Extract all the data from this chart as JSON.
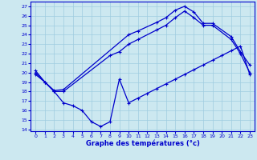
{
  "xlabel": "Graphe des températures (°c)",
  "background_color": "#cce8f0",
  "grid_color": "#9fcce0",
  "line_color": "#0000cc",
  "line1_x": [
    0,
    1,
    2,
    3,
    10,
    11,
    13,
    14,
    15,
    16,
    17,
    18,
    19,
    21,
    22,
    23
  ],
  "line1_y": [
    20.2,
    19.0,
    18.1,
    18.2,
    24.0,
    24.4,
    25.3,
    25.8,
    26.6,
    27.0,
    26.4,
    25.2,
    25.2,
    23.8,
    22.2,
    20.8
  ],
  "line2_x": [
    0,
    1,
    2,
    3,
    8,
    9,
    10,
    11,
    13,
    14,
    15,
    16,
    17,
    18,
    19,
    21,
    22,
    23
  ],
  "line2_y": [
    20.0,
    19.0,
    18.0,
    18.0,
    21.8,
    22.2,
    23.0,
    23.5,
    24.5,
    25.0,
    25.8,
    26.5,
    25.8,
    25.0,
    25.0,
    23.5,
    22.0,
    20.0
  ],
  "line3_x": [
    0,
    1,
    2,
    3,
    4,
    5,
    6,
    7,
    8,
    9,
    10,
    11,
    12,
    13,
    14,
    15,
    16,
    17,
    18,
    19,
    20,
    21,
    22,
    23
  ],
  "line3_y": [
    19.8,
    19.0,
    18.0,
    16.8,
    16.5,
    16.0,
    14.8,
    14.3,
    14.8,
    19.3,
    16.8,
    17.3,
    17.8,
    18.3,
    18.8,
    19.3,
    19.8,
    20.3,
    20.8,
    21.3,
    21.8,
    22.3,
    22.8,
    19.8
  ],
  "xlim": [
    -0.5,
    23.5
  ],
  "ylim": [
    13.8,
    27.5
  ],
  "yticks": [
    14,
    15,
    16,
    17,
    18,
    19,
    20,
    21,
    22,
    23,
    24,
    25,
    26,
    27
  ],
  "xticks": [
    0,
    1,
    2,
    3,
    4,
    5,
    6,
    7,
    8,
    9,
    10,
    11,
    12,
    13,
    14,
    15,
    16,
    17,
    18,
    19,
    20,
    21,
    22,
    23
  ],
  "xtick_labels": [
    "0",
    "1",
    "2",
    "3",
    "4",
    "5",
    "6",
    "7",
    "8",
    "9",
    "10",
    "11",
    "12",
    "13",
    "14",
    "15",
    "16",
    "17",
    "18",
    "19",
    "20",
    "21",
    "22",
    "23"
  ]
}
